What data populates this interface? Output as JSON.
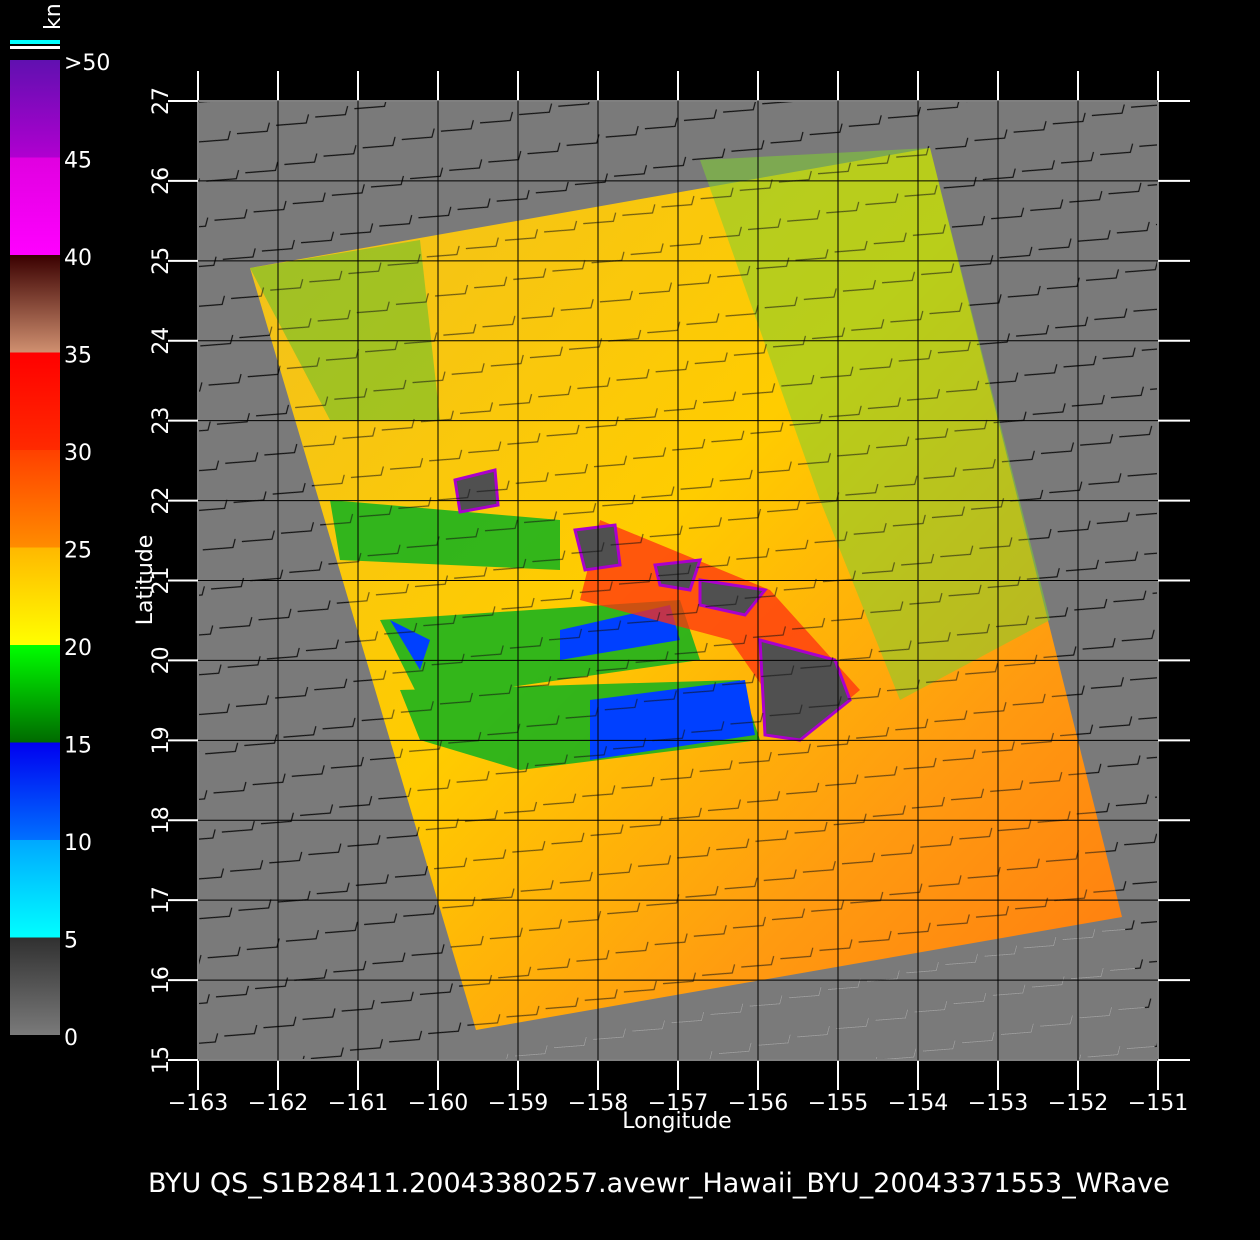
{
  "colorbar": {
    "unit": "kn",
    "ticks": [
      0,
      5,
      10,
      15,
      20,
      25,
      30,
      35,
      40,
      45,
      {
        "value": 50,
        "label": ">50"
      }
    ],
    "colors": [
      [
        "#7a7a7a",
        "#303030"
      ],
      [
        "#00ffff",
        "#00a8ff"
      ],
      [
        "#0070ff",
        "#0000f0"
      ],
      [
        "#006a00",
        "#00ff00"
      ],
      [
        "#ffff00",
        "#ffb800"
      ],
      [
        "#ff8c00",
        "#ff4000"
      ],
      [
        "#ff2a00",
        "#ff0000"
      ],
      [
        "#d09070",
        "#3a0000"
      ],
      [
        "#ff00ff",
        "#e000e0"
      ],
      [
        "#b000d0",
        "#6010b0"
      ]
    ]
  },
  "map": {
    "xlabel": "Longitude",
    "ylabel": "Latitude",
    "xlim": [
      -163,
      -151
    ],
    "ylim": [
      15,
      27
    ],
    "xticks": [
      {
        "value": -163,
        "label": "−163"
      },
      {
        "value": -162,
        "label": "−162"
      },
      {
        "value": -161,
        "label": "−161"
      },
      {
        "value": -160,
        "label": "−160"
      },
      {
        "value": -159,
        "label": "−159"
      },
      {
        "value": -158,
        "label": "−158"
      },
      {
        "value": -157,
        "label": "−157"
      },
      {
        "value": -156,
        "label": "−156"
      },
      {
        "value": -155,
        "label": "−155"
      },
      {
        "value": -154,
        "label": "−154"
      },
      {
        "value": -153,
        "label": "−153"
      },
      {
        "value": -152,
        "label": "−152"
      },
      {
        "value": -151,
        "label": "−151"
      }
    ],
    "yticks": [
      15,
      16,
      17,
      18,
      19,
      20,
      21,
      22,
      23,
      24,
      25,
      26,
      27
    ]
  },
  "footer": "BYU  QS_S1B28411.20043380257.avewr_Hawaii_BYU_20043371553_WRave"
}
